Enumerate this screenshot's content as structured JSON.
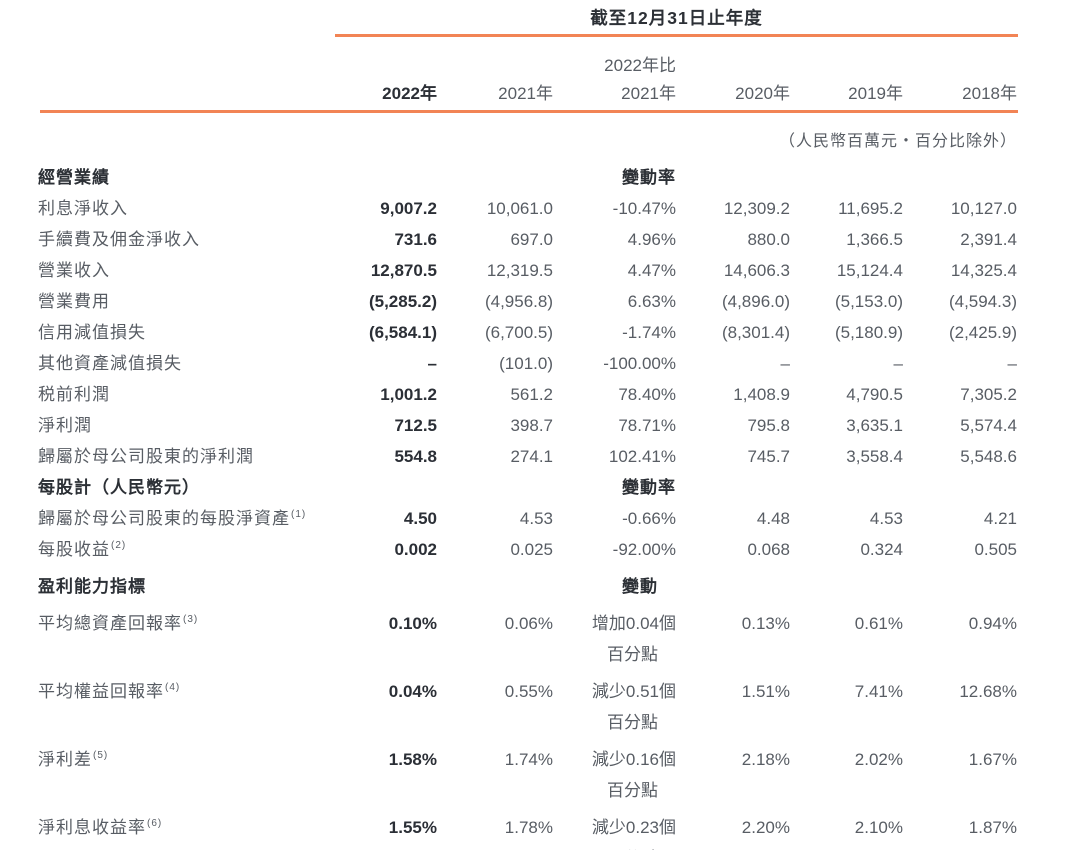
{
  "colors": {
    "accent_rule": "#F28455",
    "text_dark": "#2C3036",
    "text_gray": "#585D64"
  },
  "header": {
    "title": "截至12月31日止年度",
    "change_col_subheader": "2022年比",
    "year_headers": [
      "2022年",
      "2021年",
      "2021年",
      "2020年",
      "2019年",
      "2018年"
    ],
    "unit_note": "（人民幣百萬元‧百分比除外）"
  },
  "table": {
    "rows": [
      {
        "type": "section",
        "label": "經營業績",
        "change": "變動率"
      },
      {
        "type": "data",
        "label": "利息淨收入",
        "cells": [
          "9,007.2",
          "10,061.0",
          "-10.47%",
          "12,309.2",
          "11,695.2",
          "10,127.0"
        ]
      },
      {
        "type": "data",
        "label": "手續費及佣金淨收入",
        "cells": [
          "731.6",
          "697.0",
          "4.96%",
          "880.0",
          "1,366.5",
          "2,391.4"
        ]
      },
      {
        "type": "data",
        "label": "營業收入",
        "cells": [
          "12,870.5",
          "12,319.5",
          "4.47%",
          "14,606.3",
          "15,124.4",
          "14,325.4"
        ]
      },
      {
        "type": "data",
        "label": "營業費用",
        "cells": [
          "(5,285.2)",
          "(4,956.8)",
          "6.63%",
          "(4,896.0)",
          "(5,153.0)",
          "(4,594.3)"
        ]
      },
      {
        "type": "data",
        "label": "信用減值損失",
        "cells": [
          "(6,584.1)",
          "(6,700.5)",
          "-1.74%",
          "(8,301.4)",
          "(5,180.9)",
          "(2,425.9)"
        ]
      },
      {
        "type": "data",
        "label": "其他資產減值損失",
        "cells": [
          "–",
          "(101.0)",
          "-100.00%",
          "–",
          "–",
          "–"
        ]
      },
      {
        "type": "data",
        "label": "税前利潤",
        "cells": [
          "1,001.2",
          "561.2",
          "78.40%",
          "1,408.9",
          "4,790.5",
          "7,305.2"
        ]
      },
      {
        "type": "data",
        "label": "淨利潤",
        "cells": [
          "712.5",
          "398.7",
          "78.71%",
          "795.8",
          "3,635.1",
          "5,574.4"
        ]
      },
      {
        "type": "data",
        "label": "歸屬於母公司股東的淨利潤",
        "cells": [
          "554.8",
          "274.1",
          "102.41%",
          "745.7",
          "3,558.4",
          "5,548.6"
        ]
      },
      {
        "type": "section",
        "label": "每股計（人民幣元）",
        "change": "變動率"
      },
      {
        "type": "data",
        "label": "歸屬於母公司股東的每股淨資產",
        "sup": "(1)",
        "cells": [
          "4.50",
          "4.53",
          "-0.66%",
          "4.48",
          "4.53",
          "4.21"
        ]
      },
      {
        "type": "data",
        "label": "每股收益",
        "sup": "(2)",
        "cells": [
          "0.002",
          "0.025",
          "-92.00%",
          "0.068",
          "0.324",
          "0.505"
        ]
      },
      {
        "type": "section",
        "label": "盈利能力指標",
        "change": "變動",
        "change_pad": true
      },
      {
        "type": "data",
        "label": "平均總資產回報率",
        "sup": "(3)",
        "cells": [
          "0.10%",
          "0.06%",
          "增加0.04個",
          "0.13%",
          "0.61%",
          "0.94%"
        ],
        "change2": "百分點"
      },
      {
        "type": "data",
        "label": "平均權益回報率",
        "sup": "(4)",
        "cells": [
          "0.04%",
          "0.55%",
          "減少0.51個",
          "1.51%",
          "7.41%",
          "12.68%"
        ],
        "change2": "百分點"
      },
      {
        "type": "data",
        "label": "淨利差",
        "sup": "(5)",
        "cells": [
          "1.58%",
          "1.74%",
          "減少0.16個",
          "2.18%",
          "2.02%",
          "1.67%"
        ],
        "change2": "百分點"
      },
      {
        "type": "data",
        "label": "淨利息收益率",
        "sup": "(6)",
        "cells": [
          "1.55%",
          "1.78%",
          "減少0.23個",
          "2.20%",
          "2.10%",
          "1.87%"
        ],
        "change2": "百分點"
      }
    ]
  }
}
